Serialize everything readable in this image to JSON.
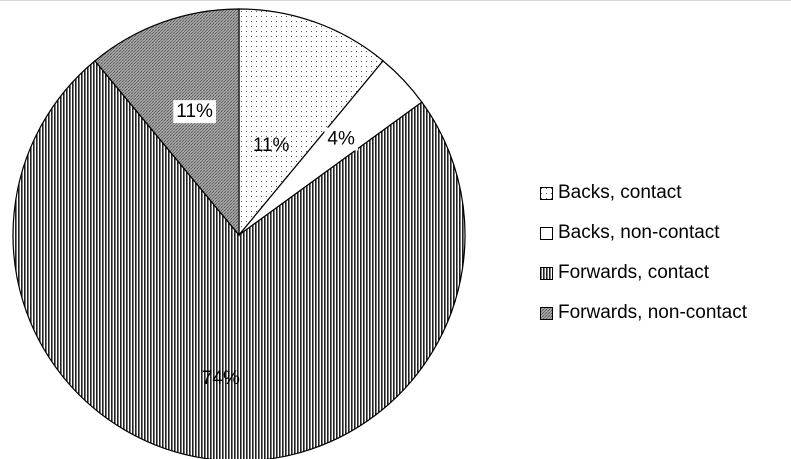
{
  "chart_data": {
    "type": "pie",
    "slices": [
      {
        "label": "Backs, contact",
        "value": 11,
        "display": "11%",
        "pattern": "dots"
      },
      {
        "label": "Backs, non-contact",
        "value": 4,
        "display": "4%",
        "pattern": "none"
      },
      {
        "label": "Forwards, contact",
        "value": 74,
        "display": "74%",
        "pattern": "vertical-lines"
      },
      {
        "label": "Forwards, non-contact",
        "value": 11,
        "display": "11%",
        "pattern": "crosshatch"
      }
    ],
    "legend_position": "right",
    "start_angle": "top",
    "direction": "clockwise"
  },
  "colors": {
    "outline": "#000000",
    "background": "#ffffff",
    "frame": "#d9d9d9"
  }
}
